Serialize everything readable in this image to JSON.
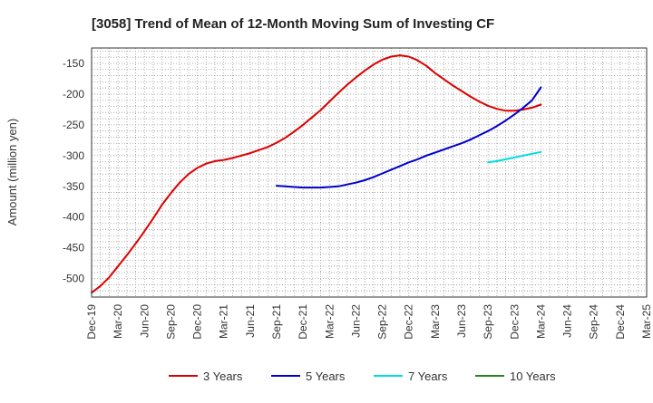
{
  "chart_data": {
    "type": "line",
    "title": "[3058]  Trend of Mean of 12-Month Moving Sum of Investing CF",
    "xlabel": "",
    "ylabel": "Amount (million yen)",
    "ylim": [
      -530,
      -125
    ],
    "yticks": [
      -150,
      -200,
      -250,
      -300,
      -350,
      -400,
      -450,
      -500
    ],
    "x_ticks": [
      "Dec-19",
      "Mar-20",
      "Jun-20",
      "Sep-20",
      "Dec-20",
      "Mar-21",
      "Jun-21",
      "Sep-21",
      "Dec-21",
      "Mar-22",
      "Jun-22",
      "Sep-22",
      "Dec-22",
      "Mar-23",
      "Jun-23",
      "Sep-23",
      "Dec-23",
      "Mar-24",
      "Jun-24",
      "Sep-24",
      "Dec-24",
      "Mar-25"
    ],
    "grid": true,
    "legend_position": "bottom",
    "series": [
      {
        "name": "3 Years",
        "color": "#dd0000",
        "x": [
          "2019-12",
          "2020-01",
          "2020-02",
          "2020-03",
          "2020-04",
          "2020-05",
          "2020-06",
          "2020-07",
          "2020-08",
          "2020-09",
          "2020-10",
          "2020-11",
          "2020-12",
          "2021-01",
          "2021-02",
          "2021-03",
          "2021-04",
          "2021-05",
          "2021-06",
          "2021-07",
          "2021-08",
          "2021-09",
          "2021-10",
          "2021-11",
          "2021-12",
          "2022-01",
          "2022-02",
          "2022-03",
          "2022-04",
          "2022-05",
          "2022-06",
          "2022-07",
          "2022-08",
          "2022-09",
          "2022-10",
          "2022-11",
          "2022-12",
          "2023-01",
          "2023-02",
          "2023-03",
          "2023-04",
          "2023-05",
          "2023-06",
          "2023-07",
          "2023-08",
          "2023-09",
          "2023-10",
          "2023-11",
          "2023-12",
          "2024-01",
          "2024-02",
          "2024-03"
        ],
        "values": [
          -523,
          -512,
          -498,
          -480,
          -462,
          -443,
          -423,
          -402,
          -380,
          -361,
          -344,
          -330,
          -320,
          -313,
          -309,
          -307,
          -304,
          -300,
          -296,
          -291,
          -286,
          -279,
          -271,
          -261,
          -250,
          -238,
          -226,
          -212,
          -198,
          -185,
          -173,
          -162,
          -152,
          -144,
          -139,
          -137,
          -139,
          -145,
          -154,
          -166,
          -176,
          -186,
          -195,
          -204,
          -212,
          -219,
          -224,
          -227,
          -227,
          -225,
          -222,
          -217
        ]
      },
      {
        "name": "5 Years",
        "color": "#0000cc",
        "x": [
          "2021-09",
          "2021-10",
          "2021-11",
          "2021-12",
          "2022-01",
          "2022-02",
          "2022-03",
          "2022-04",
          "2022-05",
          "2022-06",
          "2022-07",
          "2022-08",
          "2022-09",
          "2022-10",
          "2022-11",
          "2022-12",
          "2023-01",
          "2023-02",
          "2023-03",
          "2023-04",
          "2023-05",
          "2023-06",
          "2023-07",
          "2023-08",
          "2023-09",
          "2023-10",
          "2023-11",
          "2023-12",
          "2024-01",
          "2024-02",
          "2024-03"
        ],
        "values": [
          -349,
          -350,
          -351,
          -352,
          -352,
          -352,
          -351,
          -350,
          -347,
          -344,
          -340,
          -335,
          -329,
          -323,
          -317,
          -311,
          -306,
          -300,
          -295,
          -290,
          -285,
          -280,
          -274,
          -267,
          -260,
          -252,
          -243,
          -233,
          -222,
          -210,
          -189
        ]
      },
      {
        "name": "7 Years",
        "color": "#00dddd",
        "x": [
          "2023-09",
          "2023-10",
          "2023-11",
          "2023-12",
          "2024-01",
          "2024-02",
          "2024-03"
        ],
        "values": [
          -311,
          -309,
          -306,
          -303,
          -300,
          -297,
          -294
        ]
      },
      {
        "name": "10 Years",
        "color": "#228822",
        "x": [],
        "values": []
      }
    ]
  }
}
